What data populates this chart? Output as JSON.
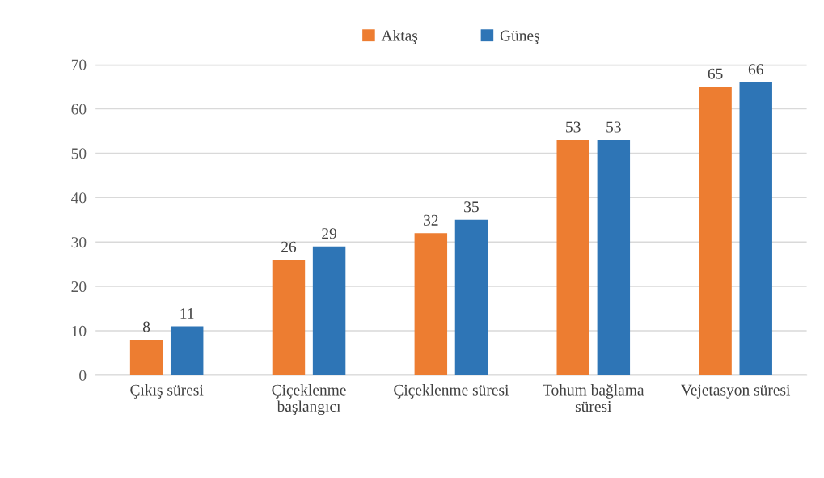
{
  "chart_data": {
    "type": "bar",
    "categories": [
      "Çıkış süresi",
      "Çiçeklenme\nbaşlangıcı",
      "Çiçeklenme süresi",
      "Tohum bağlama\nsüresi",
      "Vejetasyon süresi"
    ],
    "series": [
      {
        "name": "Aktaş",
        "color": "#ed7d31",
        "values": [
          8,
          26,
          32,
          53,
          65
        ]
      },
      {
        "name": "Güneş",
        "color": "#2e75b6",
        "values": [
          11,
          29,
          35,
          53,
          66
        ]
      }
    ],
    "ylim": [
      0,
      70
    ],
    "yticks": [
      0,
      10,
      20,
      30,
      40,
      50,
      60,
      70
    ],
    "grid": "y",
    "legend": "top",
    "data_labels": true
  }
}
